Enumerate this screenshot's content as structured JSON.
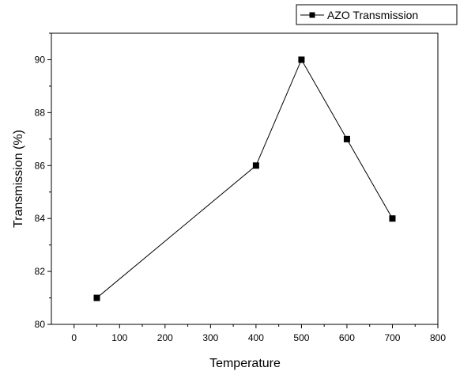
{
  "chart_data": {
    "type": "line",
    "xlabel": "Temperature",
    "ylabel": "Transmission (%)",
    "xlim": [
      -50,
      800
    ],
    "ylim": [
      80,
      91
    ],
    "x_ticks": [
      0,
      100,
      200,
      300,
      400,
      500,
      600,
      700,
      800
    ],
    "y_ticks": [
      80,
      82,
      84,
      86,
      88,
      90
    ],
    "grid": false,
    "legend_position": "top-right, outside plot",
    "series": [
      {
        "name": "AZO Transmission",
        "marker": "square",
        "color": "#000000",
        "x": [
          50,
          400,
          500,
          600,
          700
        ],
        "y": [
          81,
          86,
          90,
          87,
          84
        ]
      }
    ]
  }
}
